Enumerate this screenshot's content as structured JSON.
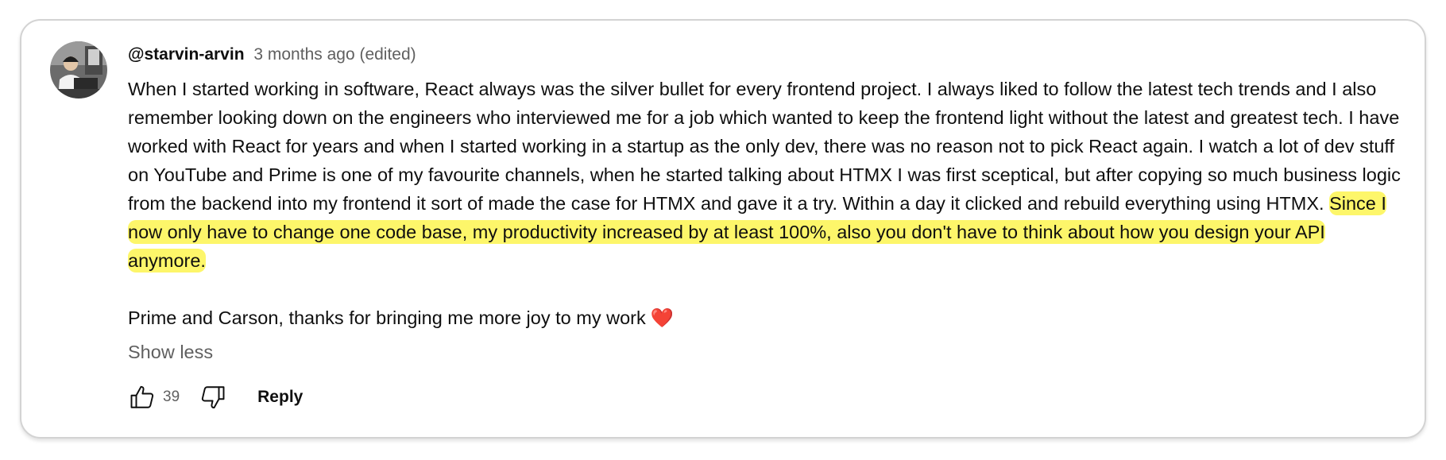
{
  "comment": {
    "author": "@starvin-arvin",
    "meta": "3 months ago (edited)",
    "body_normal": "When I started working in software, React always was the silver bullet for every frontend project. I always liked to follow the latest tech trends and I also remember looking down on the engineers who interviewed me for a job which wanted to keep the frontend light without the latest and greatest tech. I have worked with React for years and when I started working in a startup as the only dev, there was no reason not to pick React again. I watch a lot of dev stuff on YouTube and Prime is one of my favourite channels, when he started talking about HTMX I was first sceptical, but after copying so much business logic from the backend into my frontend it sort of made the case for HTMX and gave it a try. Within a day it clicked and rebuild everything using HTMX.",
    "body_highlighted": "Since I now only have to change one code base, my productivity increased by at least 100%, also you don't have to think about how you design your API anymore.",
    "body_closing": "Prime and Carson, thanks for bringing me more joy to my work",
    "emoji": "❤️",
    "show_less_label": "Show less",
    "like_count": "39",
    "reply_label": "Reply"
  },
  "colors": {
    "highlight": "#fdf66a",
    "secondary_text": "#606060",
    "primary_text": "#0f0f0f",
    "card_border": "#d3d3d3"
  },
  "icons": {
    "like": "thumbs-up-icon",
    "dislike": "thumbs-down-icon",
    "heart": "red-heart-emoji"
  }
}
